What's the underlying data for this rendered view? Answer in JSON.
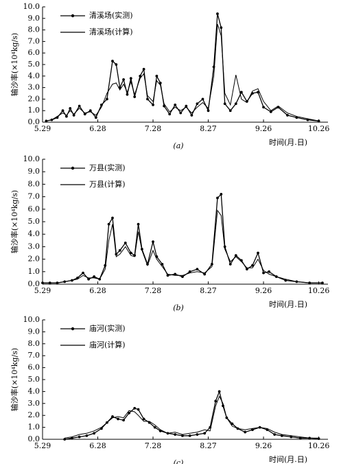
{
  "chart_data": [
    {
      "type": "line",
      "caption": "(a)",
      "ylabel": "输沙率(×10⁴kg/s)",
      "xlabel": "时间(月.日)",
      "xlim": [
        0,
        155
      ],
      "ylim": [
        0,
        10
      ],
      "xticks": [
        {
          "value": 0,
          "label": "5.29"
        },
        {
          "value": 30,
          "label": "6.28"
        },
        {
          "value": 60,
          "label": "7.28"
        },
        {
          "value": 90,
          "label": "8.27"
        },
        {
          "value": 120,
          "label": "9.26"
        },
        {
          "value": 150,
          "label": "10.26"
        }
      ],
      "yticks": [
        {
          "value": 0,
          "label": "0.0"
        },
        {
          "value": 1,
          "label": "1.0"
        },
        {
          "value": 2,
          "label": "2.0"
        },
        {
          "value": 3,
          "label": "3.0"
        },
        {
          "value": 4,
          "label": "4.0"
        },
        {
          "value": 5,
          "label": "5.0"
        },
        {
          "value": 6,
          "label": "6.0"
        },
        {
          "value": 7,
          "label": "7.0"
        },
        {
          "value": 8,
          "label": "8.0"
        },
        {
          "value": 9,
          "label": "9.0"
        },
        {
          "value": 10,
          "label": "10.0"
        }
      ],
      "x": [
        2,
        5,
        8,
        11,
        13,
        15,
        17,
        20,
        23,
        26,
        29,
        32,
        35,
        38,
        40,
        42,
        44,
        46,
        48,
        50,
        53,
        55,
        57,
        60,
        62,
        64,
        66,
        69,
        72,
        75,
        78,
        81,
        84,
        87,
        90,
        93,
        95,
        97,
        99,
        102,
        105,
        108,
        111,
        114,
        117,
        120,
        124,
        128,
        133,
        138,
        144,
        150
      ],
      "series": [
        {
          "name": "清溪场(实测)",
          "color": "#000000",
          "marker": "circle",
          "values": [
            0.1,
            0.2,
            0.4,
            1.0,
            0.5,
            1.2,
            0.6,
            1.4,
            0.7,
            1.0,
            0.4,
            1.5,
            2.0,
            5.3,
            5.0,
            3.0,
            3.7,
            2.4,
            3.8,
            2.2,
            4.0,
            4.6,
            2.0,
            1.5,
            4.0,
            3.4,
            1.4,
            0.7,
            1.5,
            0.8,
            1.4,
            0.6,
            1.6,
            2.0,
            1.0,
            4.8,
            9.4,
            8.2,
            1.6,
            1.0,
            1.6,
            2.6,
            1.8,
            2.5,
            2.6,
            1.3,
            0.9,
            1.3,
            0.6,
            0.4,
            0.2,
            0.1
          ]
        },
        {
          "name": "清溪场(计算)",
          "color": "#000000",
          "marker": "none",
          "values": [
            0.1,
            0.2,
            0.5,
            0.8,
            0.6,
            1.0,
            0.7,
            1.2,
            0.8,
            0.9,
            0.6,
            1.3,
            2.5,
            3.3,
            3.4,
            2.8,
            3.3,
            2.6,
            3.5,
            2.4,
            3.8,
            4.2,
            2.3,
            1.8,
            3.6,
            3.2,
            1.6,
            0.9,
            1.3,
            1.0,
            1.3,
            0.8,
            1.3,
            1.7,
            1.2,
            4.0,
            8.5,
            7.5,
            2.5,
            1.5,
            4.1,
            2.0,
            1.7,
            2.7,
            2.9,
            1.8,
            1.0,
            1.4,
            0.8,
            0.5,
            0.3,
            0.1
          ]
        }
      ]
    },
    {
      "type": "line",
      "caption": "(b)",
      "ylabel": "输沙率(×10⁴kg/s)",
      "xlabel": "时间(月.日)",
      "xlim": [
        0,
        155
      ],
      "ylim": [
        0,
        10
      ],
      "xticks": [
        {
          "value": 0,
          "label": "5.29"
        },
        {
          "value": 30,
          "label": "6.28"
        },
        {
          "value": 60,
          "label": "7.28"
        },
        {
          "value": 90,
          "label": "8.27"
        },
        {
          "value": 120,
          "label": "9.26"
        },
        {
          "value": 150,
          "label": "10.26"
        }
      ],
      "yticks": [
        {
          "value": 0,
          "label": "0.0"
        },
        {
          "value": 1,
          "label": "1.0"
        },
        {
          "value": 2,
          "label": "2.0"
        },
        {
          "value": 3,
          "label": "3.0"
        },
        {
          "value": 4,
          "label": "4.0"
        },
        {
          "value": 5,
          "label": "5.0"
        },
        {
          "value": 6,
          "label": "6.0"
        },
        {
          "value": 7,
          "label": "7.0"
        },
        {
          "value": 8,
          "label": "8.0"
        },
        {
          "value": 9,
          "label": "9.0"
        },
        {
          "value": 10,
          "label": "10.0"
        }
      ],
      "x": [
        0,
        4,
        8,
        12,
        16,
        19,
        22,
        25,
        28,
        31,
        34,
        36,
        38,
        40,
        42,
        45,
        48,
        50,
        52,
        54,
        57,
        60,
        62,
        65,
        68,
        72,
        76,
        80,
        84,
        88,
        92,
        95,
        97,
        99,
        102,
        105,
        108,
        111,
        114,
        117,
        120,
        123,
        127,
        132,
        138,
        145,
        152
      ],
      "series": [
        {
          "name": "万县(实测)",
          "color": "#000000",
          "marker": "circle",
          "values": [
            0.1,
            0.1,
            0.1,
            0.2,
            0.3,
            0.5,
            0.9,
            0.4,
            0.6,
            0.4,
            1.5,
            4.8,
            5.3,
            2.4,
            2.7,
            3.3,
            2.5,
            2.3,
            4.8,
            2.8,
            1.6,
            3.4,
            2.2,
            1.6,
            0.7,
            0.8,
            0.6,
            1.0,
            1.2,
            0.8,
            1.6,
            6.9,
            7.2,
            3.0,
            1.6,
            2.3,
            1.9,
            1.2,
            1.5,
            2.5,
            0.9,
            1.0,
            0.6,
            0.3,
            0.2,
            0.1,
            0.1
          ]
        },
        {
          "name": "万县(计算)",
          "color": "#000000",
          "marker": "none",
          "values": [
            0.1,
            0.1,
            0.1,
            0.2,
            0.3,
            0.4,
            0.7,
            0.5,
            0.5,
            0.4,
            1.2,
            3.5,
            4.8,
            2.2,
            2.4,
            3.0,
            2.3,
            2.2,
            4.2,
            2.7,
            1.5,
            2.7,
            2.0,
            1.4,
            0.8,
            0.7,
            0.7,
            0.9,
            1.0,
            0.9,
            1.4,
            5.9,
            5.5,
            2.8,
            1.8,
            2.2,
            1.8,
            1.3,
            1.3,
            2.0,
            1.1,
            0.8,
            0.6,
            0.4,
            0.2,
            0.1,
            0.1
          ]
        }
      ]
    },
    {
      "type": "line",
      "caption": "(c)",
      "ylabel": "输沙率(×10⁴kg/s)",
      "xlabel": "时间(月.日)",
      "xlim": [
        0,
        155
      ],
      "ylim": [
        0,
        10
      ],
      "xticks": [
        {
          "value": 0,
          "label": "5.29"
        },
        {
          "value": 30,
          "label": "6.28"
        },
        {
          "value": 60,
          "label": "7.28"
        },
        {
          "value": 90,
          "label": "8.27"
        },
        {
          "value": 120,
          "label": "9.26"
        },
        {
          "value": 150,
          "label": "10.26"
        }
      ],
      "yticks": [
        {
          "value": 0,
          "label": "0.0"
        },
        {
          "value": 1,
          "label": "1.0"
        },
        {
          "value": 2,
          "label": "2.0"
        },
        {
          "value": 3,
          "label": "3.0"
        },
        {
          "value": 4,
          "label": "4.0"
        },
        {
          "value": 5,
          "label": "5.0"
        },
        {
          "value": 6,
          "label": "6.0"
        },
        {
          "value": 7,
          "label": "7.0"
        },
        {
          "value": 8,
          "label": "8.0"
        },
        {
          "value": 9,
          "label": "9.0"
        },
        {
          "value": 10,
          "label": "10.0"
        }
      ],
      "x": [
        12,
        16,
        20,
        24,
        28,
        32,
        35,
        38,
        41,
        44,
        47,
        50,
        52,
        55,
        58,
        61,
        64,
        68,
        72,
        76,
        80,
        84,
        88,
        91,
        94,
        96,
        98,
        100,
        103,
        106,
        110,
        114,
        118,
        122,
        126,
        130,
        135,
        140,
        145,
        150
      ],
      "series": [
        {
          "name": "庙河(实测)",
          "color": "#000000",
          "marker": "circle",
          "values": [
            0.0,
            0.1,
            0.2,
            0.3,
            0.5,
            0.9,
            1.4,
            1.9,
            1.7,
            1.6,
            2.2,
            2.6,
            2.5,
            1.7,
            1.4,
            1.0,
            0.7,
            0.5,
            0.4,
            0.3,
            0.3,
            0.4,
            0.5,
            1.0,
            3.2,
            4.0,
            2.8,
            1.8,
            1.3,
            0.9,
            0.6,
            0.8,
            1.0,
            0.8,
            0.4,
            0.3,
            0.2,
            0.1,
            0.1,
            0.05
          ]
        },
        {
          "name": "庙河(计算)",
          "color": "#000000",
          "marker": "none",
          "values": [
            0.1,
            0.2,
            0.4,
            0.5,
            0.7,
            1.0,
            1.4,
            1.8,
            1.9,
            1.8,
            2.4,
            2.3,
            2.0,
            1.5,
            1.5,
            1.2,
            0.8,
            0.5,
            0.6,
            0.4,
            0.5,
            0.6,
            0.8,
            0.7,
            2.8,
            3.6,
            3.0,
            1.8,
            1.1,
            0.9,
            0.8,
            0.9,
            1.0,
            0.9,
            0.6,
            0.4,
            0.3,
            0.2,
            0.1,
            0.1
          ]
        }
      ]
    }
  ]
}
